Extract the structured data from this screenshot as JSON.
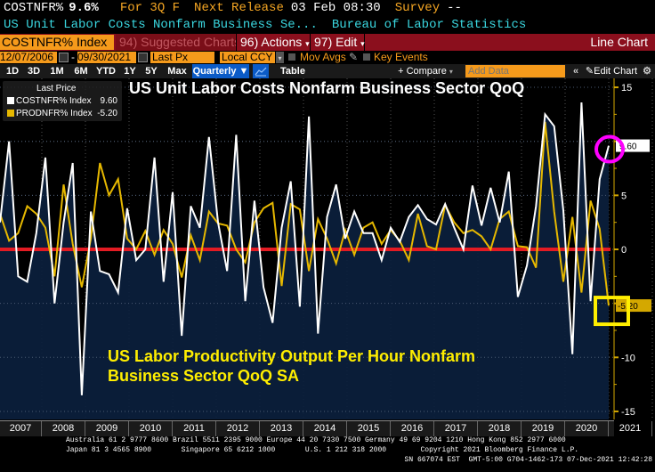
{
  "header": {
    "ticker": "COSTNFR%",
    "value": "9.6%",
    "period": "For 3Q F",
    "next_release_label": "Next Release",
    "next_release": "03 Feb 08:30",
    "survey_label": "Survey",
    "survey": "--",
    "description": "US Unit Labor Costs Nonfarm Business Se...",
    "source": "Bureau of Labor Statistics"
  },
  "toolbar": {
    "security": "COSTNFR% Index",
    "suggested": "94) Suggested Charts",
    "actions": "96) Actions",
    "edit": "97) Edit",
    "chart_type": "Line Chart",
    "start_date": "12/07/2006",
    "dash": "-",
    "end_date": "09/30/2021",
    "price_field": "Last Px",
    "currency": "Local CCY",
    "mov_avgs": "Mov Avgs",
    "key_events": "Key Events",
    "periods": [
      "1D",
      "3D",
      "1M",
      "6M",
      "YTD",
      "1Y",
      "5Y",
      "Max"
    ],
    "frequency": "Quarterly",
    "table": "Table",
    "compare": "+ Compare",
    "add_data_placeholder": "Add Data",
    "collapse": "«",
    "edit_chart": "Edit Chart"
  },
  "legend": {
    "header": "Last Price",
    "items": [
      {
        "name": "COSTNFR% Index",
        "value": "9.60",
        "color": "#ffffff"
      },
      {
        "name": "PRODNFR% Index",
        "value": "-5.20",
        "color": "#e6b800"
      }
    ]
  },
  "annotations": {
    "title_top": "US Unit Labor Costs Nonfarm Business Sector QoQ",
    "title_bottom_line1": "US Labor Productivity Output Per Hour Nonfarm",
    "title_bottom_line2": "Business Sector QoQ SA"
  },
  "footer": {
    "line1": "Australia 61 2 9777 8600 Brazil 5511 2395 9000 Europe 44 20 7330 7500 Germany 49 69 9204 1210 Hong Kong 852 2977 6000",
    "line2": "Japan 81 3 4565 8900       Singapore 65 6212 1000       U.S. 1 212 318 2000        Copyright 2021 Bloomberg Finance L.P.",
    "line3": "SN 667074 EST  GMT-5:00 G704-1462-173 07-Dec-2021 12:42:28"
  },
  "chart_data": {
    "type": "line",
    "title": "US Unit Labor Costs Nonfarm Business Sector QoQ",
    "xlabel": "",
    "ylabel": "",
    "ylim": [
      -16,
      16
    ],
    "yticks": [
      15,
      10,
      5,
      0,
      -5,
      -10,
      -15
    ],
    "x_tick_labels": [
      "2007",
      "2008",
      "2009",
      "2010",
      "2011",
      "2012",
      "2013",
      "2014",
      "2015",
      "2016",
      "2017",
      "2018",
      "2019",
      "2020",
      "2021"
    ],
    "grid": true,
    "legend_position": "top-left",
    "reference_line": 0,
    "series": [
      {
        "name": "COSTNFR% Index",
        "color": "#ffffff",
        "filled": true,
        "last_value": 9.6,
        "values": [
          2.5,
          10.0,
          -2.5,
          -3.0,
          1.5,
          8.5,
          -5.0,
          2.5,
          8.0,
          -13.5,
          3.5,
          -2.0,
          -2.3,
          -4.0,
          3.8,
          -1.0,
          0.0,
          8.5,
          -3.0,
          5.3,
          -8.0,
          4.0,
          2.0,
          10.4,
          2.5,
          -2.0,
          10.6,
          -4.8,
          4.5,
          -3.5,
          -6.8,
          2.0,
          6.3,
          -5.3,
          12.3,
          -7.8,
          3.0,
          6.0,
          1.0,
          3.5,
          1.5,
          1.5,
          -1.0,
          2.0,
          0.7,
          3.0,
          4.1,
          2.8,
          2.3,
          4.2,
          2.0,
          0.0,
          5.9,
          2.2,
          5.7,
          2.5,
          7.2,
          -4.4,
          -1.5,
          4.0,
          12.5,
          11.4,
          3.6,
          -9.7,
          13.6,
          -4.8,
          6.5,
          9.6
        ]
      },
      {
        "name": "PRODNFR% Index",
        "color": "#e6b800",
        "filled": false,
        "last_value": -5.2,
        "values": [
          3.3,
          0.8,
          1.5,
          4.0,
          3.3,
          2.0,
          -2.5,
          6.0,
          0.5,
          -3.5,
          1.0,
          8.0,
          5.0,
          6.5,
          1.0,
          0.0,
          1.7,
          -0.5,
          1.8,
          0.5,
          -2.6,
          1.3,
          -1.0,
          3.5,
          2.4,
          2.2,
          0.0,
          -1.2,
          2.5,
          3.8,
          4.3,
          -3.4,
          4.2,
          3.7,
          -2.0,
          2.8,
          1.0,
          -1.3,
          1.8,
          -0.5,
          2.0,
          2.5,
          0.5,
          1.8,
          0.8,
          -1.0,
          3.3,
          0.3,
          0.0,
          4.1,
          2.5,
          1.5,
          1.8,
          1.2,
          0.0,
          2.8,
          3.5,
          0.3,
          0.2,
          -1.7,
          11.8,
          3.5,
          -3.0,
          3.0,
          -4.0,
          4.5,
          1.9,
          -5.2
        ]
      }
    ]
  },
  "markers": {
    "circle_color": "#ff00ff",
    "square_color": "#ffee00",
    "zero_line_color": "#e31b23"
  }
}
